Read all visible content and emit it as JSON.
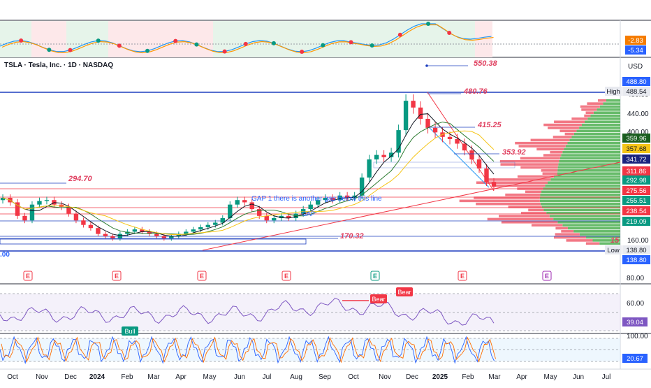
{
  "header": {
    "ticker_line": "TSLA · Tesla, Inc. · 1D · NASDAQ",
    "currency": "USD"
  },
  "colors": {
    "up": "#089981",
    "down": "#f23645",
    "annot": "#e04060",
    "blue": "#2962ff",
    "volUp": "#4caf50",
    "volDown": "#f06070"
  },
  "chart_data": [
    {
      "type": "line",
      "panel": "oscillator-top",
      "scale_labels": [
        "-2.83",
        "-5.34"
      ],
      "dot_colors": [
        "red",
        "green",
        "red",
        "green",
        "red",
        "green",
        "red",
        "green",
        "red",
        "red",
        "green",
        "red",
        "green",
        "red",
        "green",
        "red",
        "green",
        "red"
      ]
    },
    {
      "type": "candlestick",
      "panel": "price",
      "x_ticks": [
        "Oct",
        "Nov",
        "Dec",
        "2024",
        "Feb",
        "Mar",
        "Apr",
        "May",
        "Jun",
        "Jul",
        "Aug",
        "Sep",
        "Oct",
        "Nov",
        "Dec",
        "2025",
        "Feb",
        "Mar",
        "Apr",
        "May",
        "Jun",
        "Jul"
      ],
      "price_ticks": [
        480,
        440,
        400,
        160
      ],
      "price_badges": [
        {
          "value": "488.80",
          "color": "#2962ff"
        },
        {
          "value": "488.54",
          "color": "#e8eaf0",
          "label": "High"
        },
        {
          "value": "359.96",
          "color": "#1b5e20"
        },
        {
          "value": "357.68",
          "color": "#f5c518"
        },
        {
          "value": "341.72",
          "color": "#1a237e"
        },
        {
          "value": "311.86",
          "color": "#f23645"
        },
        {
          "value": "292.98",
          "color": "#089981"
        },
        {
          "value": "275.56",
          "color": "#f23645"
        },
        {
          "value": "255.51",
          "color": "#089981"
        },
        {
          "value": "238.54",
          "color": "#f23645"
        },
        {
          "value": "219.09",
          "color": "#089981"
        },
        {
          "value": "138.80",
          "color": "#e8eaf0",
          "label": "Low"
        },
        {
          "value": "138.80",
          "color": "#2962ff"
        }
      ],
      "annotations": [
        {
          "text": "550.38",
          "value": 550.38
        },
        {
          "text": "480.76",
          "value": 480.76
        },
        {
          "text": "415.25",
          "value": 415.25
        },
        {
          "text": "353.92",
          "value": 353.92
        },
        {
          "text": "294.70",
          "value": 294.7
        },
        {
          "text": "170.32",
          "value": 170.32
        },
        {
          "text": "15"
        }
      ],
      "notes": [
        "GAP 1",
        "there is another gap below this line",
        "GAP"
      ],
      "left_cut_label": ".00",
      "earnings_markers": [
        "E",
        "E",
        "E",
        "E",
        "E",
        "E",
        "E"
      ],
      "ohlc_close": [
        255,
        245,
        215,
        205,
        240,
        248,
        250,
        240,
        235,
        220,
        205,
        195,
        188,
        175,
        170,
        165,
        175,
        180,
        185,
        180,
        175,
        170,
        165,
        170,
        175,
        180,
        185,
        190,
        195,
        200,
        210,
        240,
        250,
        245,
        230,
        215,
        205,
        210,
        215,
        210,
        220,
        230,
        240,
        250,
        255,
        250,
        260,
        255,
        260,
        300,
        340,
        350,
        345,
        355,
        405,
        470,
        455,
        430,
        410,
        400,
        390,
        385,
        375,
        360,
        340,
        320,
        290,
        280
      ]
    },
    {
      "type": "line",
      "panel": "rsi",
      "scale_labels": [
        "80.00",
        "60.00",
        "39.04"
      ],
      "signals": [
        "Bear",
        "Bear",
        "Bull"
      ]
    },
    {
      "type": "line",
      "panel": "stochastic",
      "scale_labels": [
        "100.00",
        "20.67"
      ]
    }
  ]
}
